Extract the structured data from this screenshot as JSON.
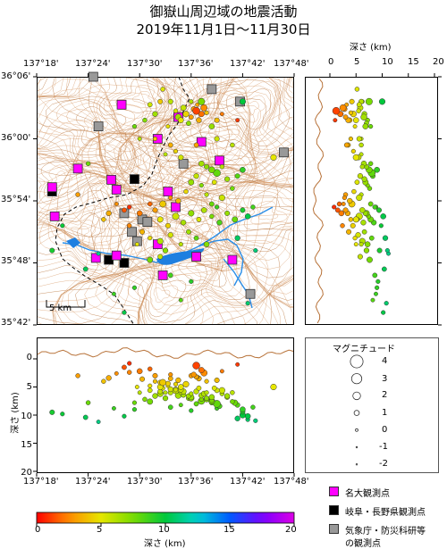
{
  "title": {
    "line1": "御嶽山周辺域の地震活動",
    "line2": "2019年11月1日〜11月30日"
  },
  "map": {
    "lon_ticks": [
      "137°18'",
      "137°24'",
      "137°30'",
      "137°36'",
      "137°42'",
      "137°48'"
    ],
    "lat_ticks": [
      "36°06'",
      "36°00'",
      "35°54'",
      "35°48'",
      "35°42'"
    ],
    "scale_label": "5 km",
    "lon_range": [
      137.3,
      137.8
    ],
    "lat_range": [
      35.7,
      36.1
    ]
  },
  "east_section": {
    "xlabel": "深さ (km)",
    "ticks": [
      "0",
      "5",
      "10",
      "15",
      "20"
    ],
    "range": [
      0,
      20
    ]
  },
  "south_section": {
    "ylabel": "深さ (km)",
    "ticks": [
      "0",
      "5",
      "10",
      "15",
      "20"
    ],
    "lon_ticks": [
      "137°18'",
      "137°24'",
      "137°30'",
      "137°36'",
      "137°42'",
      "137°48'"
    ],
    "range": [
      0,
      20
    ]
  },
  "magnitude_legend": {
    "title": "マグニチュード",
    "labels": [
      "4",
      "3",
      "2",
      "1",
      "0",
      "-1",
      "-2"
    ]
  },
  "station_legend": {
    "items": [
      {
        "label": "名大観測点",
        "color": "#ff00ff"
      },
      {
        "label": "岐阜・長野県観測点",
        "color": "#000000"
      },
      {
        "label": "気象庁・防災科研等",
        "label2": "の観測点",
        "color": "#999999"
      }
    ]
  },
  "colorbar": {
    "label": "深さ (km)",
    "ticks": [
      "0",
      "5",
      "10",
      "15",
      "20"
    ],
    "range": [
      0,
      20
    ]
  },
  "chart_data": {
    "type": "scatter",
    "xlabel": "",
    "ylabel": "深さ (km)",
    "note_units": "lon deg, lat deg, depth km, magnitude",
    "events": [
      [
        137.61,
        36.045,
        1.2,
        1.8
      ],
      [
        137.62,
        36.04,
        2.0,
        1.2
      ],
      [
        137.6,
        36.035,
        3.0,
        0.8
      ],
      [
        137.625,
        36.05,
        2.5,
        1.5
      ],
      [
        137.615,
        36.03,
        3.5,
        1.0
      ],
      [
        137.63,
        36.042,
        4.0,
        0.6
      ],
      [
        137.605,
        36.048,
        2.8,
        1.0
      ],
      [
        137.612,
        36.055,
        3.2,
        0.5
      ],
      [
        137.59,
        36.04,
        4.5,
        1.3
      ],
      [
        137.58,
        36.03,
        5.0,
        1.1
      ],
      [
        137.57,
        36.045,
        5.5,
        0.7
      ],
      [
        137.56,
        36.06,
        6.0,
        0.9
      ],
      [
        137.575,
        36.035,
        6.5,
        1.4
      ],
      [
        137.595,
        36.025,
        7.0,
        0.8
      ],
      [
        137.585,
        36.05,
        5.8,
        1.2
      ],
      [
        137.6,
        36.06,
        6.2,
        0.6
      ],
      [
        137.62,
        36.06,
        7.5,
        1.6
      ],
      [
        137.555,
        36.02,
        4.8,
        0.5
      ],
      [
        137.545,
        36.08,
        5.2,
        0.7
      ],
      [
        137.54,
        36.06,
        4.2,
        0.9
      ],
      [
        137.64,
        36.02,
        6.8,
        1.1
      ],
      [
        137.65,
        36.03,
        3.8,
        0.9
      ],
      [
        137.66,
        36.04,
        2.2,
        0.5
      ],
      [
        137.52,
        36.055,
        5.6,
        0.8
      ],
      [
        137.53,
        36.04,
        6.6,
        1.0
      ],
      [
        137.51,
        36.03,
        7.2,
        0.7
      ],
      [
        137.5,
        36.0,
        6.0,
        0.5
      ],
      [
        137.49,
        36.02,
        7.8,
        0.6
      ],
      [
        137.7,
        36.06,
        10.0,
        1.3
      ],
      [
        137.69,
        36.03,
        1.0,
        0.5
      ],
      [
        137.56,
        35.99,
        3.5,
        0.8
      ],
      [
        137.57,
        35.98,
        4.5,
        0.6
      ],
      [
        137.58,
        35.97,
        5.5,
        1.0
      ],
      [
        137.55,
        35.975,
        6.0,
        0.5
      ],
      [
        137.62,
        35.96,
        6.5,
        1.1
      ],
      [
        137.63,
        35.955,
        7.0,
        0.9
      ],
      [
        137.64,
        35.95,
        7.5,
        1.4
      ],
      [
        137.65,
        35.945,
        8.0,
        1.8
      ],
      [
        137.66,
        35.955,
        6.2,
        0.7
      ],
      [
        137.61,
        35.94,
        5.8,
        1.0
      ],
      [
        137.6,
        35.93,
        6.8,
        1.2
      ],
      [
        137.62,
        35.925,
        7.2,
        0.6
      ],
      [
        137.645,
        35.93,
        5.2,
        0.8
      ],
      [
        137.67,
        35.935,
        6.6,
        1.0
      ],
      [
        137.68,
        35.92,
        7.6,
        0.7
      ],
      [
        137.69,
        35.94,
        8.2,
        0.9
      ],
      [
        137.63,
        35.91,
        6.0,
        0.6
      ],
      [
        137.7,
        35.95,
        9.0,
        1.1
      ],
      [
        137.66,
        35.905,
        5.6,
        1.3
      ],
      [
        137.64,
        35.895,
        7.8,
        0.8
      ],
      [
        137.59,
        35.915,
        4.6,
        0.7
      ],
      [
        137.575,
        35.9,
        3.8,
        1.0
      ],
      [
        137.56,
        35.905,
        2.8,
        0.6
      ],
      [
        137.545,
        35.895,
        4.2,
        1.5
      ],
      [
        137.53,
        35.885,
        3.0,
        0.9
      ],
      [
        137.52,
        35.895,
        1.8,
        0.7
      ],
      [
        137.5,
        35.88,
        2.2,
        1.1
      ],
      [
        137.48,
        35.89,
        0.8,
        0.6
      ],
      [
        137.47,
        35.885,
        1.5,
        0.8
      ],
      [
        137.455,
        35.895,
        2.6,
        0.5
      ],
      [
        137.44,
        35.88,
        3.4,
        1.0
      ],
      [
        137.43,
        35.87,
        4.0,
        0.7
      ],
      [
        137.54,
        35.87,
        5.0,
        1.2
      ],
      [
        137.555,
        35.86,
        4.4,
        0.9
      ],
      [
        137.57,
        35.875,
        5.6,
        1.6
      ],
      [
        137.585,
        35.865,
        6.4,
        1.0
      ],
      [
        137.6,
        35.88,
        7.0,
        1.3
      ],
      [
        137.615,
        35.87,
        5.2,
        0.8
      ],
      [
        137.625,
        35.885,
        6.2,
        1.1
      ],
      [
        137.64,
        35.875,
        7.4,
        0.7
      ],
      [
        137.655,
        35.865,
        8.4,
        1.0
      ],
      [
        137.67,
        35.88,
        6.8,
        0.9
      ],
      [
        137.685,
        35.87,
        7.8,
        1.2
      ],
      [
        137.65,
        35.89,
        8.8,
        0.6
      ],
      [
        137.7,
        35.885,
        9.4,
        0.9
      ],
      [
        137.71,
        35.875,
        10.2,
        1.1
      ],
      [
        137.72,
        35.89,
        8.6,
        0.7
      ],
      [
        137.595,
        35.85,
        6.6,
        0.8
      ],
      [
        137.56,
        35.845,
        5.4,
        1.0
      ],
      [
        137.54,
        35.835,
        6.2,
        1.3
      ],
      [
        137.52,
        35.84,
        4.8,
        0.6
      ],
      [
        137.505,
        35.85,
        3.6,
        0.9
      ],
      [
        137.48,
        35.86,
        2.4,
        0.7
      ],
      [
        137.495,
        35.83,
        5.0,
        0.5
      ],
      [
        137.55,
        35.82,
        7.0,
        1.0
      ],
      [
        137.58,
        35.83,
        6.0,
        0.6
      ],
      [
        137.52,
        35.805,
        7.6,
        1.2
      ],
      [
        137.54,
        35.81,
        5.8,
        0.9
      ],
      [
        137.61,
        35.84,
        8.0,
        0.8
      ],
      [
        137.63,
        35.83,
        7.2,
        1.1
      ],
      [
        137.69,
        35.84,
        10.6,
        1.0
      ],
      [
        137.725,
        35.82,
        11.0,
        0.6
      ],
      [
        137.56,
        35.78,
        8.6,
        0.8
      ],
      [
        137.6,
        35.77,
        9.2,
        0.6
      ],
      [
        137.49,
        35.76,
        9.0,
        0.6
      ],
      [
        137.38,
        35.91,
        3.0,
        0.7
      ],
      [
        137.33,
        35.82,
        9.5,
        0.9
      ],
      [
        137.35,
        35.86,
        9.8,
        0.6
      ],
      [
        137.395,
        35.79,
        10.4,
        0.8
      ],
      [
        137.42,
        35.815,
        11.2,
        0.5
      ],
      [
        137.4,
        35.96,
        7.8,
        0.7
      ],
      [
        137.47,
        35.72,
        10.2,
        0.6
      ],
      [
        137.76,
        35.97,
        5.0,
        1.3
      ],
      [
        137.68,
        35.99,
        6.0,
        0.7
      ],
      [
        137.71,
        35.735,
        10.8,
        0.6
      ],
      [
        137.65,
        36.0,
        5.6,
        0.9
      ],
      [
        137.58,
        35.74,
        8.2,
        0.5
      ],
      [
        137.45,
        35.75,
        8.8,
        0.5
      ],
      [
        137.61,
        35.99,
        3.2,
        0.8
      ],
      [
        137.53,
        36.0,
        4.0,
        0.6
      ]
    ],
    "stations_nagoya": [
      [
        137.465,
        36.055
      ],
      [
        137.575,
        36.035
      ],
      [
        137.535,
        36.0
      ],
      [
        137.62,
        35.995
      ],
      [
        137.655,
        35.965
      ],
      [
        137.38,
        35.952
      ],
      [
        137.445,
        35.934
      ],
      [
        137.455,
        35.918
      ],
      [
        137.555,
        35.915
      ],
      [
        137.57,
        35.89
      ],
      [
        137.535,
        35.83
      ],
      [
        137.455,
        35.812
      ],
      [
        137.415,
        35.808
      ],
      [
        137.61,
        35.81
      ],
      [
        137.68,
        35.805
      ],
      [
        137.545,
        35.78
      ],
      [
        137.335,
        35.875
      ],
      [
        137.33,
        35.922
      ]
    ],
    "stations_gifu": [
      [
        137.33,
        35.915
      ],
      [
        137.49,
        35.935
      ],
      [
        137.47,
        35.8
      ],
      [
        137.44,
        35.805
      ]
    ],
    "stations_jma": [
      [
        137.41,
        36.1
      ],
      [
        137.64,
        36.08
      ],
      [
        137.695,
        36.06
      ],
      [
        137.42,
        36.02
      ],
      [
        137.585,
        35.96
      ],
      [
        137.78,
        35.978
      ],
      [
        137.47,
        35.88
      ],
      [
        137.505,
        35.87
      ],
      [
        137.515,
        35.866
      ],
      [
        137.485,
        35.85
      ],
      [
        137.495,
        35.835
      ],
      [
        137.715,
        35.75
      ]
    ]
  }
}
